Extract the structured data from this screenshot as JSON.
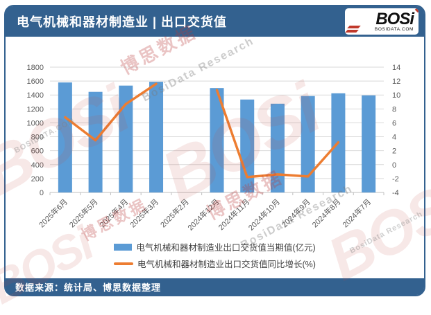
{
  "header": {
    "title": "电气机械和器材制造业 | 出口交货值",
    "logo": {
      "brand": "BOSi",
      "site": "BOSIDATA.COM"
    }
  },
  "footer": {
    "source": "数据来源：统计局、博思数据整理"
  },
  "watermark": {
    "brand": "BOSi",
    "cn": "博思数据",
    "en": "BosiData Research",
    "site": "BOSIDATA.COM"
  },
  "colors": {
    "frame_blue": "#33618F",
    "bar_blue": "#5B9BD5",
    "line_orange": "#ED7D31",
    "gridline": "#D9D9D9",
    "axis_text": "#595959"
  },
  "chart_data": {
    "type": "combo",
    "title": "电气机械和器材制造业 | 出口交货值",
    "categories": [
      "2025年6月",
      "2025年5月",
      "2025年4月",
      "2025年3月",
      "2025年2月",
      "2024年12月",
      "2024年11月",
      "2024年10月",
      "2024年9月",
      "2024年8月",
      "2024年7月"
    ],
    "series": [
      {
        "name": "电气机械和器材制造业出口交货值当期值(亿元)",
        "type": "bar",
        "axis": "left",
        "color": "#5B9BD5",
        "values": [
          1580,
          1445,
          1535,
          1590,
          null,
          1500,
          1335,
          1275,
          1385,
          1425,
          1395
        ]
      },
      {
        "name": "电气机械和器材制造业出口交货值同比增长(%)",
        "type": "line",
        "axis": "right",
        "color": "#ED7D31",
        "values": [
          6.8,
          3.5,
          8.7,
          11.6,
          null,
          10.7,
          -1.8,
          -1.4,
          -1.7,
          3.2,
          null
        ]
      }
    ],
    "left_axis": {
      "min": 0,
      "max": 1800,
      "step": 200
    },
    "right_axis": {
      "min": -4,
      "max": 14,
      "step": 2
    },
    "grid": true,
    "legend_position": "bottom"
  }
}
